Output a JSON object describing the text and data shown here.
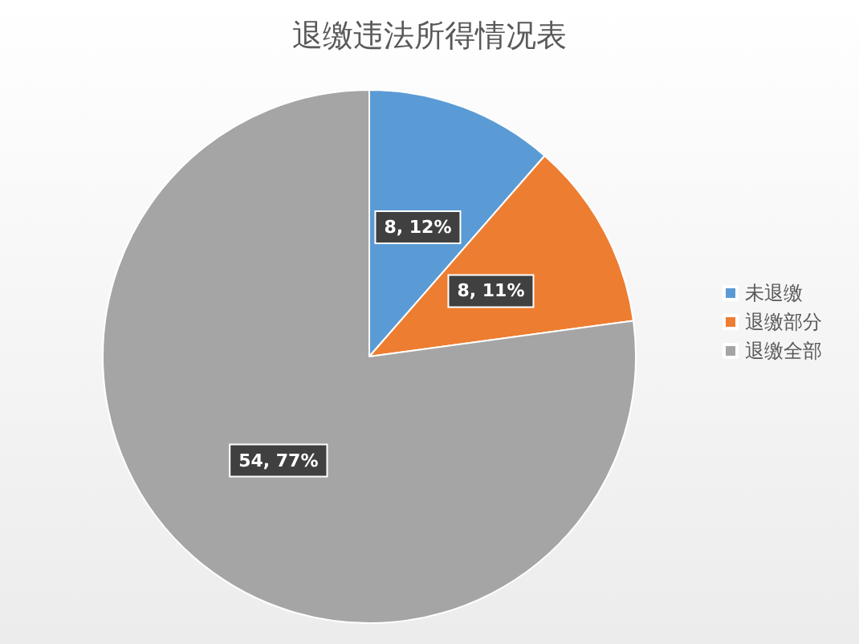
{
  "chart_data": {
    "type": "pie",
    "title": "退缴违法所得情况表",
    "categories": [
      "未退缴",
      "退缴部分",
      "退缴全部"
    ],
    "values": [
      8,
      8,
      54
    ],
    "colors": [
      "#5b9bd5",
      "#ed7d31",
      "#a5a5a5"
    ],
    "value_labels": [
      "8, 12%",
      "8, 11%",
      "54, 77%"
    ],
    "legend": "right"
  }
}
